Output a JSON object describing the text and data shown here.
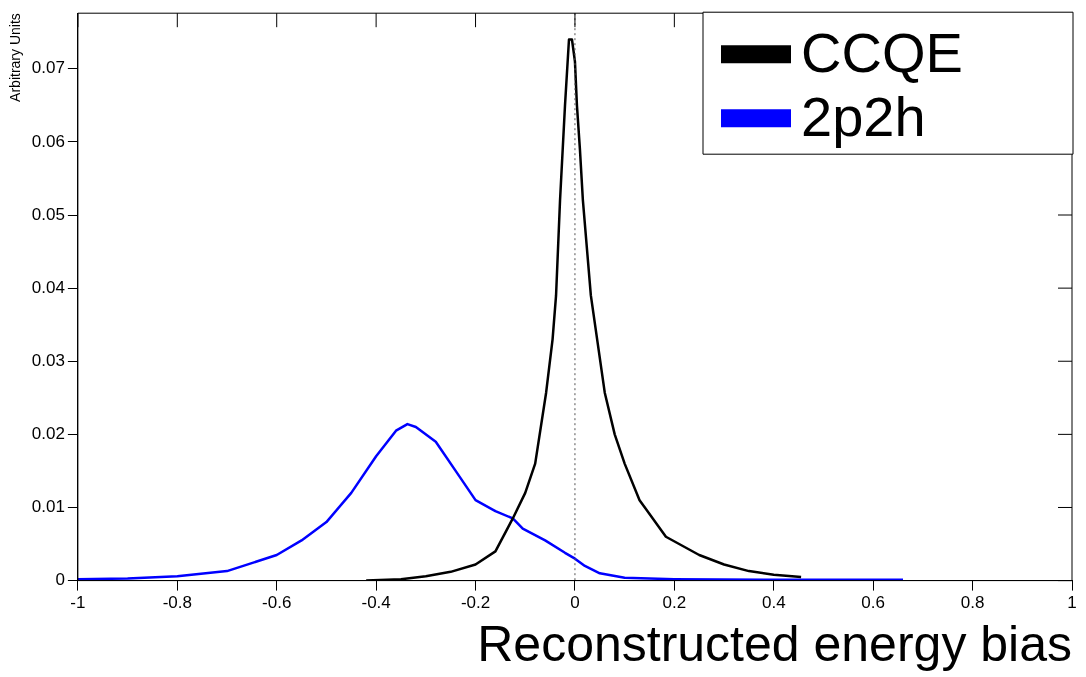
{
  "chart_data": {
    "type": "line",
    "xlabel": "Reconstructed energy bias",
    "ylabel": "Arbitrary Units",
    "xlim": [
      -1,
      1
    ],
    "ylim": [
      0,
      0.0776
    ],
    "xticks": [
      -1,
      -0.8,
      -0.6,
      -0.4,
      -0.2,
      0,
      0.2,
      0.4,
      0.6,
      0.8,
      1
    ],
    "yticks": [
      0,
      0.01,
      0.02,
      0.03,
      0.04,
      0.05,
      0.06,
      0.07
    ],
    "grid": false,
    "legend": "top right",
    "marker": "none",
    "line_style": "solid",
    "ref_lines": [
      {
        "axis": "x",
        "value": 0,
        "color": "#555555",
        "line_style": "dotted"
      }
    ],
    "series": [
      {
        "name": "CCQE",
        "color": "#000000",
        "x": [
          -0.42,
          -0.35,
          -0.3,
          -0.25,
          -0.2,
          -0.16,
          -0.125,
          -0.1,
          -0.08,
          -0.058,
          -0.045,
          -0.038,
          -0.03,
          -0.02,
          -0.012,
          -0.006,
          0,
          0.004,
          0.01,
          0.016,
          0.032,
          0.06,
          0.08,
          0.1,
          0.13,
          0.183,
          0.25,
          0.3,
          0.35,
          0.4,
          0.455
        ],
        "values": [
          0,
          0.0002,
          0.0006,
          0.0012,
          0.0022,
          0.004,
          0.0085,
          0.012,
          0.016,
          0.0257,
          0.033,
          0.039,
          0.052,
          0.065,
          0.074,
          0.074,
          0.071,
          0.065,
          0.059,
          0.052,
          0.039,
          0.0257,
          0.02,
          0.016,
          0.011,
          0.006,
          0.0035,
          0.0022,
          0.0013,
          0.0008,
          0.0005
        ]
      },
      {
        "name": "2p2h",
        "color": "#0000ff",
        "x": [
          -1,
          -0.9,
          -0.8,
          -0.7,
          -0.6,
          -0.55,
          -0.5,
          -0.45,
          -0.4,
          -0.36,
          -0.337,
          -0.32,
          -0.28,
          -0.24,
          -0.2,
          -0.16,
          -0.125,
          -0.105,
          -0.06,
          -0.02,
          0,
          0.02,
          0.05,
          0.1,
          0.2,
          0.4,
          0.66
        ],
        "values": [
          0.0002,
          0.0003,
          0.0006,
          0.0013,
          0.0035,
          0.0055,
          0.008,
          0.012,
          0.017,
          0.0205,
          0.0214,
          0.021,
          0.019,
          0.015,
          0.011,
          0.0095,
          0.0085,
          0.0071,
          0.0055,
          0.0038,
          0.003,
          0.002,
          0.001,
          0.0004,
          0.0002,
          0.0001,
          0.0001
        ]
      }
    ]
  }
}
